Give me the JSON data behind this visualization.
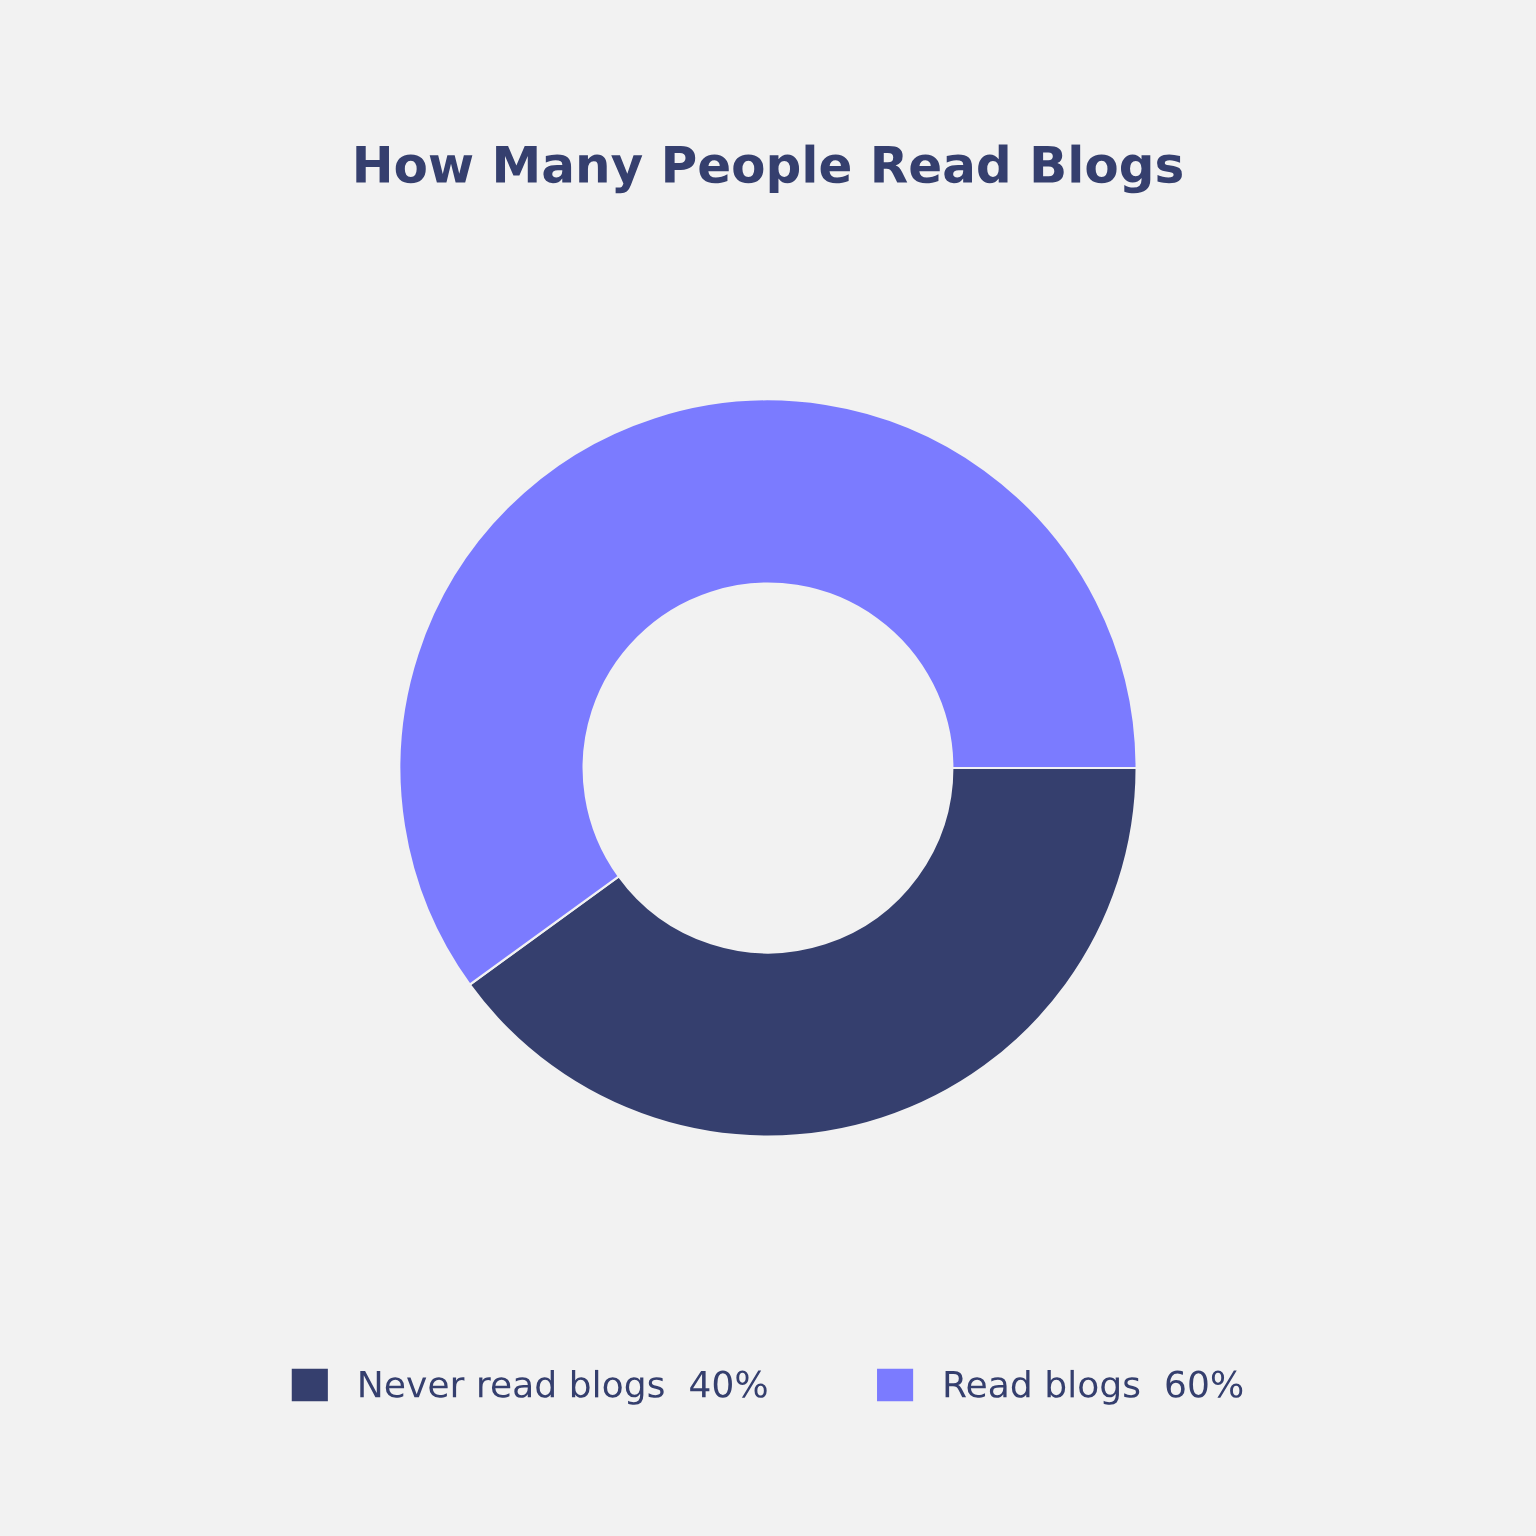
{
  "chart_data": {
    "type": "donut",
    "title": "How Many People Read Blogs",
    "categories": [
      "Never read blogs",
      "Read blogs"
    ],
    "values": [
      40,
      60
    ],
    "value_labels": [
      "40%",
      "60%"
    ],
    "colors": [
      "#353f6e",
      "#7b7bff"
    ],
    "legend": "bottom"
  }
}
